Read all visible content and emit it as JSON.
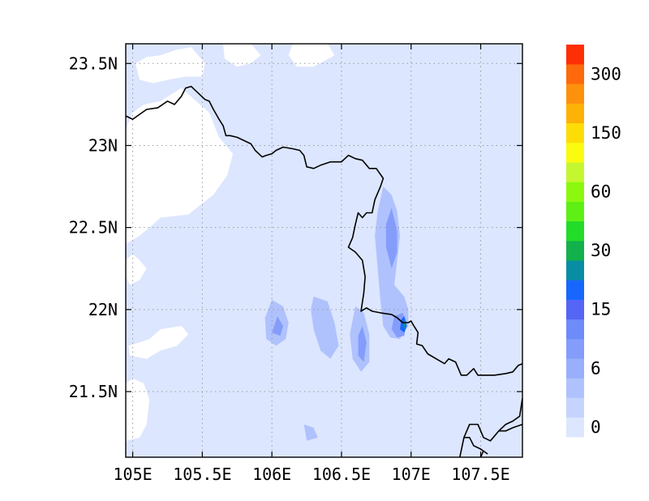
{
  "map": {
    "lon_range": [
      104.95,
      107.8
    ],
    "lat_range": [
      21.1,
      23.62
    ],
    "x_ticks": [
      {
        "value": 105.0,
        "label": "105E"
      },
      {
        "value": 105.5,
        "label": "105.5E"
      },
      {
        "value": 106.0,
        "label": "106E"
      },
      {
        "value": 106.5,
        "label": "106.5E"
      },
      {
        "value": 107.0,
        "label": "107E"
      },
      {
        "value": 107.5,
        "label": "107.5E"
      }
    ],
    "y_ticks": [
      {
        "value": 21.5,
        "label": "21.5N"
      },
      {
        "value": 22.0,
        "label": "22N"
      },
      {
        "value": 22.5,
        "label": "22.5N"
      },
      {
        "value": 23.0,
        "label": "23N"
      },
      {
        "value": 23.5,
        "label": "23.5N"
      }
    ],
    "grid": "dotted",
    "background_fill": "#dce6fe"
  },
  "colorbar": {
    "placement": "right",
    "colors": [
      "#dce6fe",
      "#c6d4fd",
      "#b0c2fd",
      "#9aaffc",
      "#849dfb",
      "#6e8bfa",
      "#5565f5",
      "#1767ff",
      "#088da3",
      "#12b14b",
      "#22dc2a",
      "#5ef015",
      "#8cf80e",
      "#c5f730",
      "#fafb0f",
      "#fedd07",
      "#fdb206",
      "#fe910b",
      "#fe6a0b",
      "#fe2e05"
    ],
    "labels": [
      {
        "level_index": 0,
        "text": "0"
      },
      {
        "level_index": 3,
        "text": "6"
      },
      {
        "level_index": 6,
        "text": "15"
      },
      {
        "level_index": 9,
        "text": "30"
      },
      {
        "level_index": 12,
        "text": "60"
      },
      {
        "level_index": 15,
        "text": "150"
      },
      {
        "level_index": 18,
        "text": "300"
      }
    ]
  },
  "contours": {
    "blank_regions": [
      [
        [
          104.95,
          23.1
        ],
        [
          105.0,
          23.2
        ],
        [
          105.08,
          23.25
        ],
        [
          105.2,
          23.27
        ],
        [
          105.35,
          23.35
        ],
        [
          105.55,
          23.2
        ],
        [
          105.62,
          23.05
        ],
        [
          105.72,
          22.95
        ],
        [
          105.68,
          22.82
        ],
        [
          105.58,
          22.7
        ],
        [
          105.4,
          22.58
        ],
        [
          105.2,
          22.56
        ],
        [
          105.12,
          22.5
        ],
        [
          105.05,
          22.45
        ],
        [
          104.95,
          22.4
        ]
      ],
      [
        [
          105.02,
          23.5
        ],
        [
          105.1,
          23.54
        ],
        [
          105.2,
          23.55
        ],
        [
          105.3,
          23.58
        ],
        [
          105.42,
          23.6
        ],
        [
          105.52,
          23.5
        ],
        [
          105.5,
          23.42
        ],
        [
          105.38,
          23.42
        ],
        [
          105.25,
          23.4
        ],
        [
          105.15,
          23.38
        ],
        [
          105.05,
          23.4
        ]
      ],
      [
        [
          105.65,
          23.62
        ],
        [
          105.85,
          23.62
        ],
        [
          105.92,
          23.55
        ],
        [
          105.85,
          23.5
        ],
        [
          105.75,
          23.48
        ],
        [
          105.66,
          23.53
        ]
      ],
      [
        [
          106.15,
          23.62
        ],
        [
          106.4,
          23.62
        ],
        [
          106.45,
          23.55
        ],
        [
          106.3,
          23.48
        ],
        [
          106.18,
          23.48
        ],
        [
          106.12,
          23.55
        ]
      ],
      [
        [
          104.97,
          21.78
        ],
        [
          105.05,
          21.8
        ],
        [
          105.12,
          21.82
        ],
        [
          105.2,
          21.88
        ],
        [
          105.35,
          21.9
        ],
        [
          105.4,
          21.85
        ],
        [
          105.32,
          21.78
        ],
        [
          105.2,
          21.75
        ],
        [
          105.1,
          21.7
        ],
        [
          104.98,
          21.72
        ]
      ],
      [
        [
          104.95,
          21.55
        ],
        [
          105.0,
          21.58
        ],
        [
          105.08,
          21.55
        ],
        [
          105.12,
          21.45
        ],
        [
          105.1,
          21.3
        ],
        [
          105.05,
          21.22
        ],
        [
          104.95,
          21.2
        ]
      ]
    ],
    "filled_levels": [
      {
        "level_index": 2,
        "shape": [
          [
            106.8,
            22.75
          ],
          [
            106.86,
            22.7
          ],
          [
            106.9,
            22.6
          ],
          [
            106.92,
            22.45
          ],
          [
            106.9,
            22.3
          ],
          [
            106.88,
            22.15
          ],
          [
            106.95,
            22.08
          ],
          [
            106.98,
            22.0
          ],
          [
            106.98,
            21.9
          ],
          [
            106.92,
            21.82
          ],
          [
            106.85,
            21.83
          ],
          [
            106.8,
            21.9
          ],
          [
            106.78,
            22.05
          ],
          [
            106.76,
            22.25
          ],
          [
            106.74,
            22.45
          ],
          [
            106.76,
            22.6
          ]
        ]
      },
      {
        "level_index": 2,
        "shape": [
          [
            106.0,
            22.06
          ],
          [
            106.08,
            22.02
          ],
          [
            106.12,
            21.92
          ],
          [
            106.1,
            21.82
          ],
          [
            106.03,
            21.78
          ],
          [
            105.96,
            21.82
          ],
          [
            105.95,
            21.95
          ]
        ]
      },
      {
        "level_index": 2,
        "shape": [
          [
            106.3,
            22.08
          ],
          [
            106.4,
            22.05
          ],
          [
            106.45,
            21.92
          ],
          [
            106.48,
            21.78
          ],
          [
            106.42,
            21.7
          ],
          [
            106.35,
            21.75
          ],
          [
            106.3,
            21.88
          ],
          [
            106.28,
            22.0
          ]
        ]
      },
      {
        "level_index": 2,
        "shape": [
          [
            106.6,
            22.02
          ],
          [
            106.66,
            21.98
          ],
          [
            106.7,
            21.85
          ],
          [
            106.7,
            21.68
          ],
          [
            106.64,
            21.62
          ],
          [
            106.58,
            21.7
          ],
          [
            106.56,
            21.85
          ]
        ]
      },
      {
        "level_index": 2,
        "shape": [
          [
            106.23,
            21.3
          ],
          [
            106.3,
            21.28
          ],
          [
            106.33,
            21.22
          ],
          [
            106.25,
            21.2
          ]
        ]
      },
      {
        "level_index": 4,
        "shape": [
          [
            106.86,
            22.62
          ],
          [
            106.9,
            22.48
          ],
          [
            106.9,
            22.35
          ],
          [
            106.86,
            22.25
          ],
          [
            106.82,
            22.38
          ],
          [
            106.82,
            22.52
          ]
        ]
      },
      {
        "level_index": 4,
        "shape": [
          [
            106.94,
            21.98
          ],
          [
            106.97,
            21.92
          ],
          [
            106.95,
            21.84
          ],
          [
            106.9,
            21.83
          ],
          [
            106.86,
            21.88
          ],
          [
            106.88,
            21.96
          ]
        ]
      },
      {
        "level_index": 4,
        "shape": [
          [
            106.04,
            21.96
          ],
          [
            106.08,
            21.9
          ],
          [
            106.06,
            21.84
          ],
          [
            106.0,
            21.86
          ]
        ]
      },
      {
        "level_index": 4,
        "shape": [
          [
            106.65,
            21.9
          ],
          [
            106.68,
            21.8
          ],
          [
            106.66,
            21.68
          ],
          [
            106.62,
            21.72
          ],
          [
            106.62,
            21.84
          ]
        ]
      },
      {
        "level_index": 7,
        "shape": [
          [
            106.95,
            21.96
          ],
          [
            106.97,
            21.9
          ],
          [
            106.95,
            21.86
          ],
          [
            106.92,
            21.88
          ],
          [
            106.93,
            21.94
          ]
        ]
      },
      {
        "level_index": 8,
        "shape": [
          [
            106.955,
            21.94
          ],
          [
            106.965,
            21.9
          ],
          [
            106.95,
            21.88
          ],
          [
            106.94,
            21.9
          ]
        ]
      }
    ],
    "outer_margin_shapes": [
      [
        [
          104.95,
          22.3
        ],
        [
          105.0,
          22.34
        ],
        [
          105.05,
          22.3
        ],
        [
          105.1,
          22.25
        ],
        [
          105.05,
          22.18
        ],
        [
          104.98,
          22.15
        ],
        [
          104.95,
          22.2
        ]
      ]
    ]
  },
  "coastlines": [
    [
      [
        104.95,
        23.18
      ],
      [
        105.0,
        23.16
      ],
      [
        105.05,
        23.19
      ],
      [
        105.1,
        23.22
      ],
      [
        105.18,
        23.23
      ],
      [
        105.25,
        23.27
      ],
      [
        105.3,
        23.25
      ],
      [
        105.35,
        23.3
      ],
      [
        105.38,
        23.35
      ],
      [
        105.42,
        23.36
      ],
      [
        105.47,
        23.32
      ],
      [
        105.52,
        23.28
      ],
      [
        105.55,
        23.27
      ],
      [
        105.58,
        23.22
      ],
      [
        105.62,
        23.16
      ],
      [
        105.65,
        23.12
      ],
      [
        105.67,
        23.06
      ],
      [
        105.7,
        23.06
      ],
      [
        105.75,
        23.05
      ],
      [
        105.8,
        23.03
      ],
      [
        105.85,
        23.01
      ],
      [
        105.88,
        22.97
      ],
      [
        105.93,
        22.93
      ],
      [
        105.96,
        22.94
      ],
      [
        106.0,
        22.95
      ],
      [
        106.03,
        22.97
      ],
      [
        106.08,
        22.99
      ],
      [
        106.15,
        22.98
      ],
      [
        106.2,
        22.97
      ],
      [
        106.23,
        22.94
      ],
      [
        106.25,
        22.87
      ],
      [
        106.3,
        22.86
      ],
      [
        106.35,
        22.88
      ],
      [
        106.42,
        22.9
      ],
      [
        106.5,
        22.9
      ],
      [
        106.55,
        22.94
      ],
      [
        106.6,
        22.92
      ],
      [
        106.65,
        22.91
      ],
      [
        106.7,
        22.86
      ],
      [
        106.75,
        22.86
      ],
      [
        106.8,
        22.8
      ],
      [
        106.78,
        22.75
      ],
      [
        106.74,
        22.67
      ],
      [
        106.72,
        22.59
      ],
      [
        106.68,
        22.59
      ],
      [
        106.65,
        22.56
      ],
      [
        106.62,
        22.59
      ],
      [
        106.6,
        22.52
      ],
      [
        106.58,
        22.44
      ],
      [
        106.55,
        22.38
      ],
      [
        106.6,
        22.35
      ],
      [
        106.65,
        22.3
      ],
      [
        106.67,
        22.2
      ],
      [
        106.66,
        22.1
      ],
      [
        106.64,
        21.99
      ],
      [
        106.68,
        22.01
      ],
      [
        106.72,
        21.99
      ],
      [
        106.78,
        21.98
      ],
      [
        106.86,
        21.97
      ],
      [
        106.9,
        21.95
      ],
      [
        106.94,
        21.92
      ],
      [
        106.98,
        21.92
      ],
      [
        107.0,
        21.93
      ],
      [
        107.02,
        21.9
      ],
      [
        107.05,
        21.86
      ],
      [
        107.04,
        21.79
      ],
      [
        107.08,
        21.78
      ],
      [
        107.12,
        21.73
      ],
      [
        107.18,
        21.7
      ],
      [
        107.24,
        21.67
      ],
      [
        107.27,
        21.7
      ],
      [
        107.32,
        21.68
      ],
      [
        107.36,
        21.6
      ],
      [
        107.4,
        21.6
      ],
      [
        107.45,
        21.64
      ],
      [
        107.48,
        21.6
      ],
      [
        107.52,
        21.6
      ],
      [
        107.6,
        21.6
      ],
      [
        107.68,
        21.61
      ],
      [
        107.73,
        21.62
      ],
      [
        107.77,
        21.66
      ],
      [
        107.8,
        21.67
      ]
    ],
    [
      [
        107.35,
        21.1
      ],
      [
        107.38,
        21.22
      ],
      [
        107.42,
        21.3
      ],
      [
        107.48,
        21.3
      ],
      [
        107.52,
        21.22
      ],
      [
        107.57,
        21.2
      ],
      [
        107.63,
        21.26
      ],
      [
        107.68,
        21.3
      ],
      [
        107.73,
        21.32
      ],
      [
        107.78,
        21.35
      ],
      [
        107.8,
        21.46
      ]
    ],
    [
      [
        107.38,
        21.22
      ],
      [
        107.42,
        21.22
      ],
      [
        107.45,
        21.17
      ],
      [
        107.5,
        21.15
      ],
      [
        107.55,
        21.12
      ]
    ],
    [
      [
        107.5,
        21.1
      ],
      [
        107.52,
        21.14
      ]
    ],
    [
      [
        107.63,
        21.26
      ],
      [
        107.68,
        21.26
      ],
      [
        107.73,
        21.28
      ],
      [
        107.8,
        21.3
      ]
    ]
  ]
}
